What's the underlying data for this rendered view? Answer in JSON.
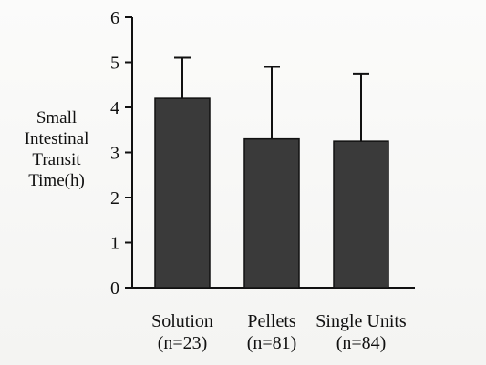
{
  "chart_data": {
    "type": "bar",
    "categories": [
      "Solution",
      "Pellets",
      "Single Units"
    ],
    "category_notes": [
      "(n=23)",
      "(n=81)",
      "(n=84)"
    ],
    "values": [
      4.2,
      3.3,
      3.25
    ],
    "error_upper": [
      5.1,
      4.9,
      4.75
    ],
    "title": "",
    "xlabel": "",
    "ylabel_lines": [
      "Small",
      "Intestinal",
      "Transit",
      "Time(h)"
    ],
    "ylim": [
      0,
      6
    ],
    "yticks": [
      0,
      1,
      2,
      3,
      4,
      5,
      6
    ],
    "bar_color": "#3a3a3a",
    "grid": false
  }
}
